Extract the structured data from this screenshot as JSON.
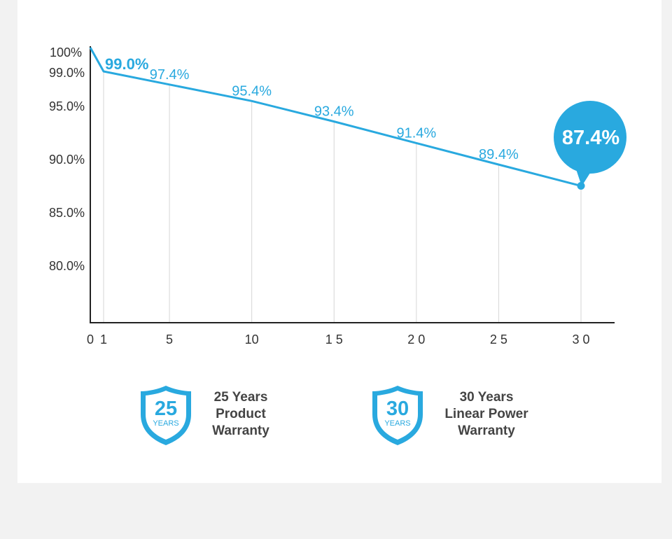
{
  "colors": {
    "accent": "#29a9df",
    "axis": "#222222",
    "gridline": "#d6d6d6",
    "label": "#333333",
    "page_background": "#f2f2f2",
    "card_background": "#ffffff"
  },
  "chart_data": {
    "type": "line",
    "title": "",
    "xlabel": "",
    "ylabel": "",
    "x_ticks": [
      "0",
      "1",
      "5",
      "10",
      "15",
      "20",
      "25",
      "30"
    ],
    "x_tick_labels": [
      "0",
      "1",
      "5",
      "10",
      "1 5",
      "2 0",
      "2 5",
      "3 0"
    ],
    "y_ticks": [
      "100%",
      "99.0%",
      "95.0%",
      "90.0%",
      "85.0%",
      "80.0%"
    ],
    "xlim": [
      0,
      32
    ],
    "grid": "vertical lines at data points",
    "series": [
      {
        "x": [
          0,
          1,
          5,
          10,
          15,
          20,
          25,
          30
        ],
        "y": [
          100,
          99.0,
          97.4,
          95.4,
          93.4,
          91.4,
          89.4,
          87.4
        ],
        "labels": [
          "",
          "99.0%",
          "97.4%",
          "95.4%",
          "93.4%",
          "91.4%",
          "89.4%",
          ""
        ],
        "color": "#29a9df"
      }
    ],
    "callout": {
      "x": 30,
      "y": 87.4,
      "label": "87.4%"
    }
  },
  "badges": [
    {
      "number": "25",
      "unit": "YEARS",
      "lines": [
        "25 Years",
        "Product",
        "Warranty"
      ]
    },
    {
      "number": "30",
      "unit": "YEARS",
      "lines": [
        "30 Years",
        "Linear Power",
        "Warranty"
      ]
    }
  ]
}
